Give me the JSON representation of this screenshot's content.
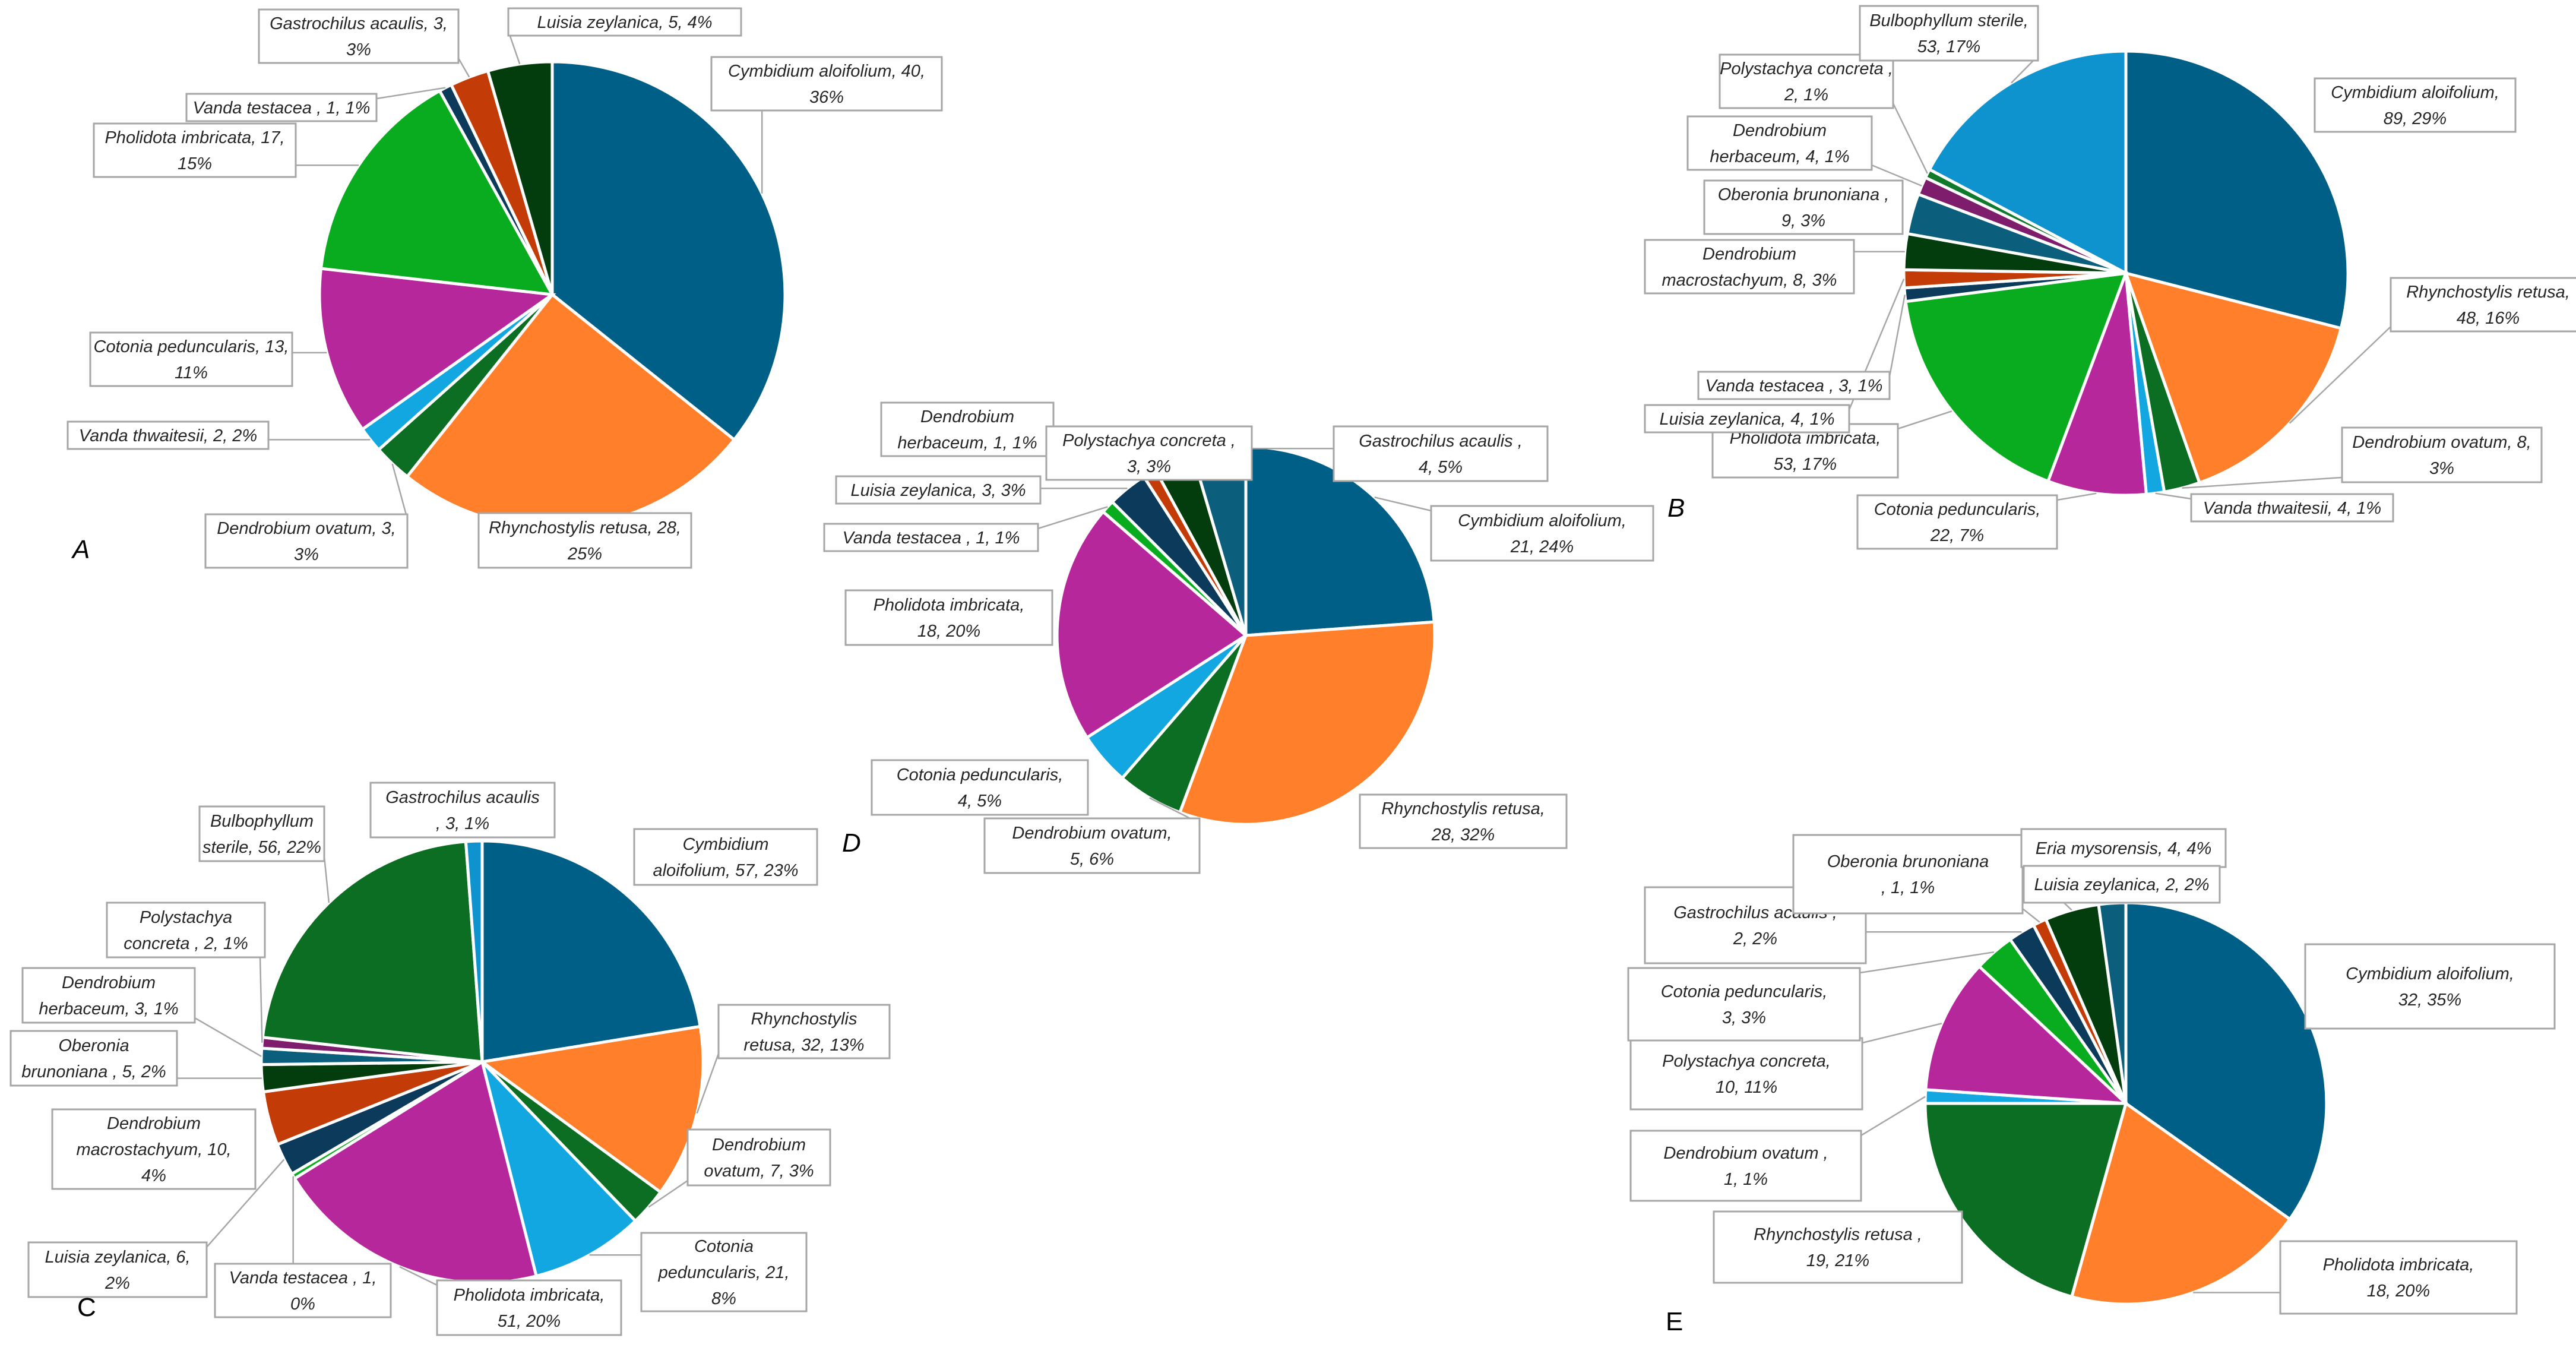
{
  "chart_data": [
    {
      "type": "pie",
      "panel_label": "A",
      "slices": [
        {
          "name": "Cymbidium aloifolium",
          "value": 40,
          "pct": "36%",
          "label_lines": [
            "Cymbidium aloifolium, 40,",
            "36%"
          ],
          "color": "#005f86"
        },
        {
          "name": "Rhynchostylis retusa",
          "value": 28,
          "pct": "25%",
          "label_lines": [
            "Rhynchostylis retusa, 28,",
            "25%"
          ],
          "color": "#ff7f2a"
        },
        {
          "name": "Dendrobium ovatum",
          "value": 3,
          "pct": "3%",
          "label_lines": [
            "Dendrobium ovatum, 3,",
            "3%"
          ],
          "color": "#0b6e23"
        },
        {
          "name": "Vanda thwaitesii",
          "value": 2,
          "pct": "2%",
          "label_lines": [
            "Vanda thwaitesii, 2, 2%"
          ],
          "color": "#12a7e0"
        },
        {
          "name": "Cotonia peduncularis",
          "value": 13,
          "pct": "11%",
          "label_lines": [
            "Cotonia peduncularis, 13,",
            "11%"
          ],
          "color": "#b5279b"
        },
        {
          "name": "Pholidota imbricata",
          "value": 17,
          "pct": "15%",
          "label_lines": [
            "Pholidota imbricata, 17,",
            "15%"
          ],
          "color": "#0aac1f"
        },
        {
          "name": "Vanda testacea",
          "value": 1,
          "pct": "1%",
          "label_lines": [
            "Vanda testacea , 1, 1%"
          ],
          "color": "#0c3a5a"
        },
        {
          "name": "Gastrochilus acaulis",
          "value": 3,
          "pct": "3%",
          "label_lines": [
            "Gastrochilus acaulis, 3,",
            "3%"
          ],
          "color": "#c33c07"
        },
        {
          "name": "Luisia zeylanica",
          "value": 5,
          "pct": "4%",
          "label_lines": [
            "Luisia zeylanica, 5, 4%"
          ],
          "color": "#033d0e"
        }
      ]
    },
    {
      "type": "pie",
      "panel_label": "B",
      "slices": [
        {
          "name": "Cymbidium aloifolium",
          "value": 89,
          "pct": "29%",
          "label_lines": [
            "Cymbidium aloifolium,",
            "89, 29%"
          ],
          "color": "#005f86"
        },
        {
          "name": "Rhynchostylis retusa",
          "value": 48,
          "pct": "16%",
          "label_lines": [
            "Rhynchostylis retusa,",
            "48, 16%"
          ],
          "color": "#ff7f2a"
        },
        {
          "name": "Dendrobium ovatum",
          "value": 8,
          "pct": "3%",
          "label_lines": [
            "Dendrobium ovatum, 8,",
            "3%"
          ],
          "color": "#0b6e23"
        },
        {
          "name": "Vanda thwaitesii",
          "value": 4,
          "pct": "1%",
          "label_lines": [
            "Vanda thwaitesii, 4, 1%"
          ],
          "color": "#12a7e0"
        },
        {
          "name": "Cotonia peduncularis",
          "value": 22,
          "pct": "7%",
          "label_lines": [
            "Cotonia peduncularis,",
            "22, 7%"
          ],
          "color": "#b5279b"
        },
        {
          "name": "Pholidota imbricata",
          "value": 53,
          "pct": "17%",
          "label_lines": [
            "Pholidota imbricata,",
            "53, 17%"
          ],
          "color": "#0aac1f"
        },
        {
          "name": "Vanda testacea",
          "value": 3,
          "pct": "1%",
          "label_lines": [
            "Vanda testacea , 3, 1%"
          ],
          "color": "#0c3a5a"
        },
        {
          "name": "Luisia zeylanica",
          "value": 4,
          "pct": "1%",
          "label_lines": [
            "Luisia zeylanica, 4, 1%"
          ],
          "color": "#c33c07"
        },
        {
          "name": "Dendrobium macrostachyum",
          "value": 8,
          "pct": "3%",
          "label_lines": [
            "Dendrobium",
            "macrostachyum, 8, 3%"
          ],
          "color": "#033d0e"
        },
        {
          "name": "Oberonia brunoniana",
          "value": 9,
          "pct": "3%",
          "label_lines": [
            "Oberonia brunoniana ,",
            "9, 3%"
          ],
          "color": "#0b5f7d"
        },
        {
          "name": "Dendrobium herbaceum",
          "value": 4,
          "pct": "1%",
          "label_lines": [
            "Dendrobium",
            "herbaceum, 4, 1%"
          ],
          "color": "#7d1d6b"
        },
        {
          "name": "Polystachya concreta",
          "value": 2,
          "pct": "1%",
          "label_lines": [
            "Polystachya concreta ,",
            "2, 1%"
          ],
          "color": "#0f7a2c"
        },
        {
          "name": "Bulbophyllum sterile",
          "value": 53,
          "pct": "17%",
          "label_lines": [
            "Bulbophyllum sterile,",
            "53, 17%"
          ],
          "color": "#0f93ce"
        }
      ]
    },
    {
      "type": "pie",
      "panel_label": "C",
      "slices": [
        {
          "name": "Cymbidium aloifolium",
          "value": 57,
          "pct": "23%",
          "label_lines": [
            "Cymbidium",
            "aloifolium, 57, 23%"
          ],
          "color": "#005f86"
        },
        {
          "name": "Rhynchostylis retusa",
          "value": 32,
          "pct": "13%",
          "label_lines": [
            "Rhynchostylis",
            "retusa, 32, 13%"
          ],
          "color": "#ff7f2a"
        },
        {
          "name": "Dendrobium ovatum",
          "value": 7,
          "pct": "3%",
          "label_lines": [
            "Dendrobium",
            "ovatum, 7, 3%"
          ],
          "color": "#0b6e23"
        },
        {
          "name": "Cotonia peduncularis",
          "value": 21,
          "pct": "8%",
          "label_lines": [
            "Cotonia",
            "peduncularis, 21,",
            "8%"
          ],
          "color": "#12a7e0"
        },
        {
          "name": "Pholidota imbricata",
          "value": 51,
          "pct": "20%",
          "label_lines": [
            "Pholidota imbricata,",
            "51, 20%"
          ],
          "color": "#b5279b"
        },
        {
          "name": "Vanda testacea",
          "value": 1,
          "pct": "0%",
          "label_lines": [
            "Vanda testacea , 1,",
            "0%"
          ],
          "color": "#0aac1f"
        },
        {
          "name": "Luisia zeylanica",
          "value": 6,
          "pct": "2%",
          "label_lines": [
            "Luisia zeylanica, 6,",
            "2%"
          ],
          "color": "#0c3a5a"
        },
        {
          "name": "Dendrobium macrostachyum",
          "value": 10,
          "pct": "4%",
          "label_lines": [
            "Dendrobium",
            "macrostachyum, 10,",
            "4%"
          ],
          "color": "#c33c07"
        },
        {
          "name": "Oberonia brunoniana",
          "value": 5,
          "pct": "2%",
          "label_lines": [
            "Oberonia",
            "brunoniana , 5, 2%"
          ],
          "color": "#033d0e"
        },
        {
          "name": "Dendrobium herbaceum",
          "value": 3,
          "pct": "1%",
          "label_lines": [
            "Dendrobium",
            "herbaceum, 3, 1%"
          ],
          "color": "#0b5f7d"
        },
        {
          "name": "Polystachya concreta",
          "value": 2,
          "pct": "1%",
          "label_lines": [
            "Polystachya",
            "concreta , 2, 1%"
          ],
          "color": "#7d1d6b"
        },
        {
          "name": "Bulbophyllum sterile",
          "value": 56,
          "pct": "22%",
          "label_lines": [
            "Bulbophyllum",
            "sterile, 56, 22%"
          ],
          "color": "#0b6e23"
        },
        {
          "name": "Gastrochilus acaulis",
          "value": 3,
          "pct": "1%",
          "label_lines": [
            "Gastrochilus acaulis",
            ", 3, 1%"
          ],
          "color": "#0f93ce"
        }
      ]
    },
    {
      "type": "pie",
      "panel_label": "D",
      "slices": [
        {
          "name": "Cymbidium aloifolium",
          "value": 21,
          "pct": "24%",
          "label_lines": [
            "Cymbidium aloifolium,",
            "21, 24%"
          ],
          "color": "#005f86"
        },
        {
          "name": "Rhynchostylis retusa",
          "value": 28,
          "pct": "32%",
          "label_lines": [
            "Rhynchostylis retusa,",
            "28, 32%"
          ],
          "color": "#ff7f2a"
        },
        {
          "name": "Dendrobium ovatum",
          "value": 5,
          "pct": "6%",
          "label_lines": [
            "Dendrobium ovatum,",
            "5, 6%"
          ],
          "color": "#0b6e23"
        },
        {
          "name": "Cotonia peduncularis",
          "value": 4,
          "pct": "5%",
          "label_lines": [
            "Cotonia peduncularis,",
            "4, 5%"
          ],
          "color": "#12a7e0"
        },
        {
          "name": "Pholidota imbricata",
          "value": 18,
          "pct": "20%",
          "label_lines": [
            "Pholidota imbricata,",
            "18, 20%"
          ],
          "color": "#b5279b"
        },
        {
          "name": "Vanda testacea",
          "value": 1,
          "pct": "1%",
          "label_lines": [
            "Vanda testacea , 1, 1%"
          ],
          "color": "#0aac1f"
        },
        {
          "name": "Luisia zeylanica",
          "value": 3,
          "pct": "3%",
          "label_lines": [
            "Luisia zeylanica, 3, 3%"
          ],
          "color": "#0c3a5a"
        },
        {
          "name": "Dendrobium herbaceum",
          "value": 1,
          "pct": "1%",
          "label_lines": [
            "Dendrobium",
            "herbaceum, 1, 1%"
          ],
          "color": "#c33c07"
        },
        {
          "name": "Polystachya concreta",
          "value": 3,
          "pct": "3%",
          "label_lines": [
            "Polystachya concreta ,",
            "3, 3%"
          ],
          "color": "#033d0e"
        },
        {
          "name": "Gastrochilus acaulis",
          "value": 4,
          "pct": "5%",
          "label_lines": [
            "Gastrochilus acaulis ,",
            "4, 5%"
          ],
          "color": "#0b5f7d"
        }
      ]
    },
    {
      "type": "pie",
      "panel_label": "E",
      "slices": [
        {
          "name": "Cymbidium aloifolium",
          "value": 32,
          "pct": "35%",
          "label_lines": [
            "Cymbidium aloifolium,",
            "32, 35%"
          ],
          "color": "#005f86"
        },
        {
          "name": "Pholidota imbricata",
          "value": 18,
          "pct": "20%",
          "label_lines": [
            "Pholidota imbricata,",
            "18, 20%"
          ],
          "color": "#ff7f2a"
        },
        {
          "name": "Rhynchostylis retusa",
          "value": 19,
          "pct": "21%",
          "label_lines": [
            "Rhynchostylis retusa ,",
            "19, 21%"
          ],
          "color": "#0b6e23"
        },
        {
          "name": "Dendrobium ovatum",
          "value": 1,
          "pct": "1%",
          "label_lines": [
            "Dendrobium ovatum ,",
            "1, 1%"
          ],
          "color": "#12a7e0"
        },
        {
          "name": "Polystachya concreta",
          "value": 10,
          "pct": "11%",
          "label_lines": [
            "Polystachya concreta,",
            "10, 11%"
          ],
          "color": "#b5279b"
        },
        {
          "name": "Cotonia peduncularis",
          "value": 3,
          "pct": "3%",
          "label_lines": [
            "Cotonia peduncularis,",
            "3, 3%"
          ],
          "color": "#0aac1f"
        },
        {
          "name": "Gastrochilus acaulis",
          "value": 2,
          "pct": "2%",
          "label_lines": [
            "Gastrochilus acaulis ,",
            "2, 2%"
          ],
          "color": "#0c3a5a"
        },
        {
          "name": "Oberonia brunoniana",
          "value": 1,
          "pct": "1%",
          "label_lines": [
            "Oberonia brunoniana",
            ", 1, 1%"
          ],
          "color": "#c33c07"
        },
        {
          "name": "Eria mysorensis",
          "value": 4,
          "pct": "4%",
          "label_lines": [
            "Eria mysorensis, 4, 4%"
          ],
          "color": "#033d0e"
        },
        {
          "name": "Luisia zeylanica",
          "value": 2,
          "pct": "2%",
          "label_lines": [
            "Luisia zeylanica, 2, 2%"
          ],
          "color": "#0b5f7d"
        }
      ]
    }
  ]
}
